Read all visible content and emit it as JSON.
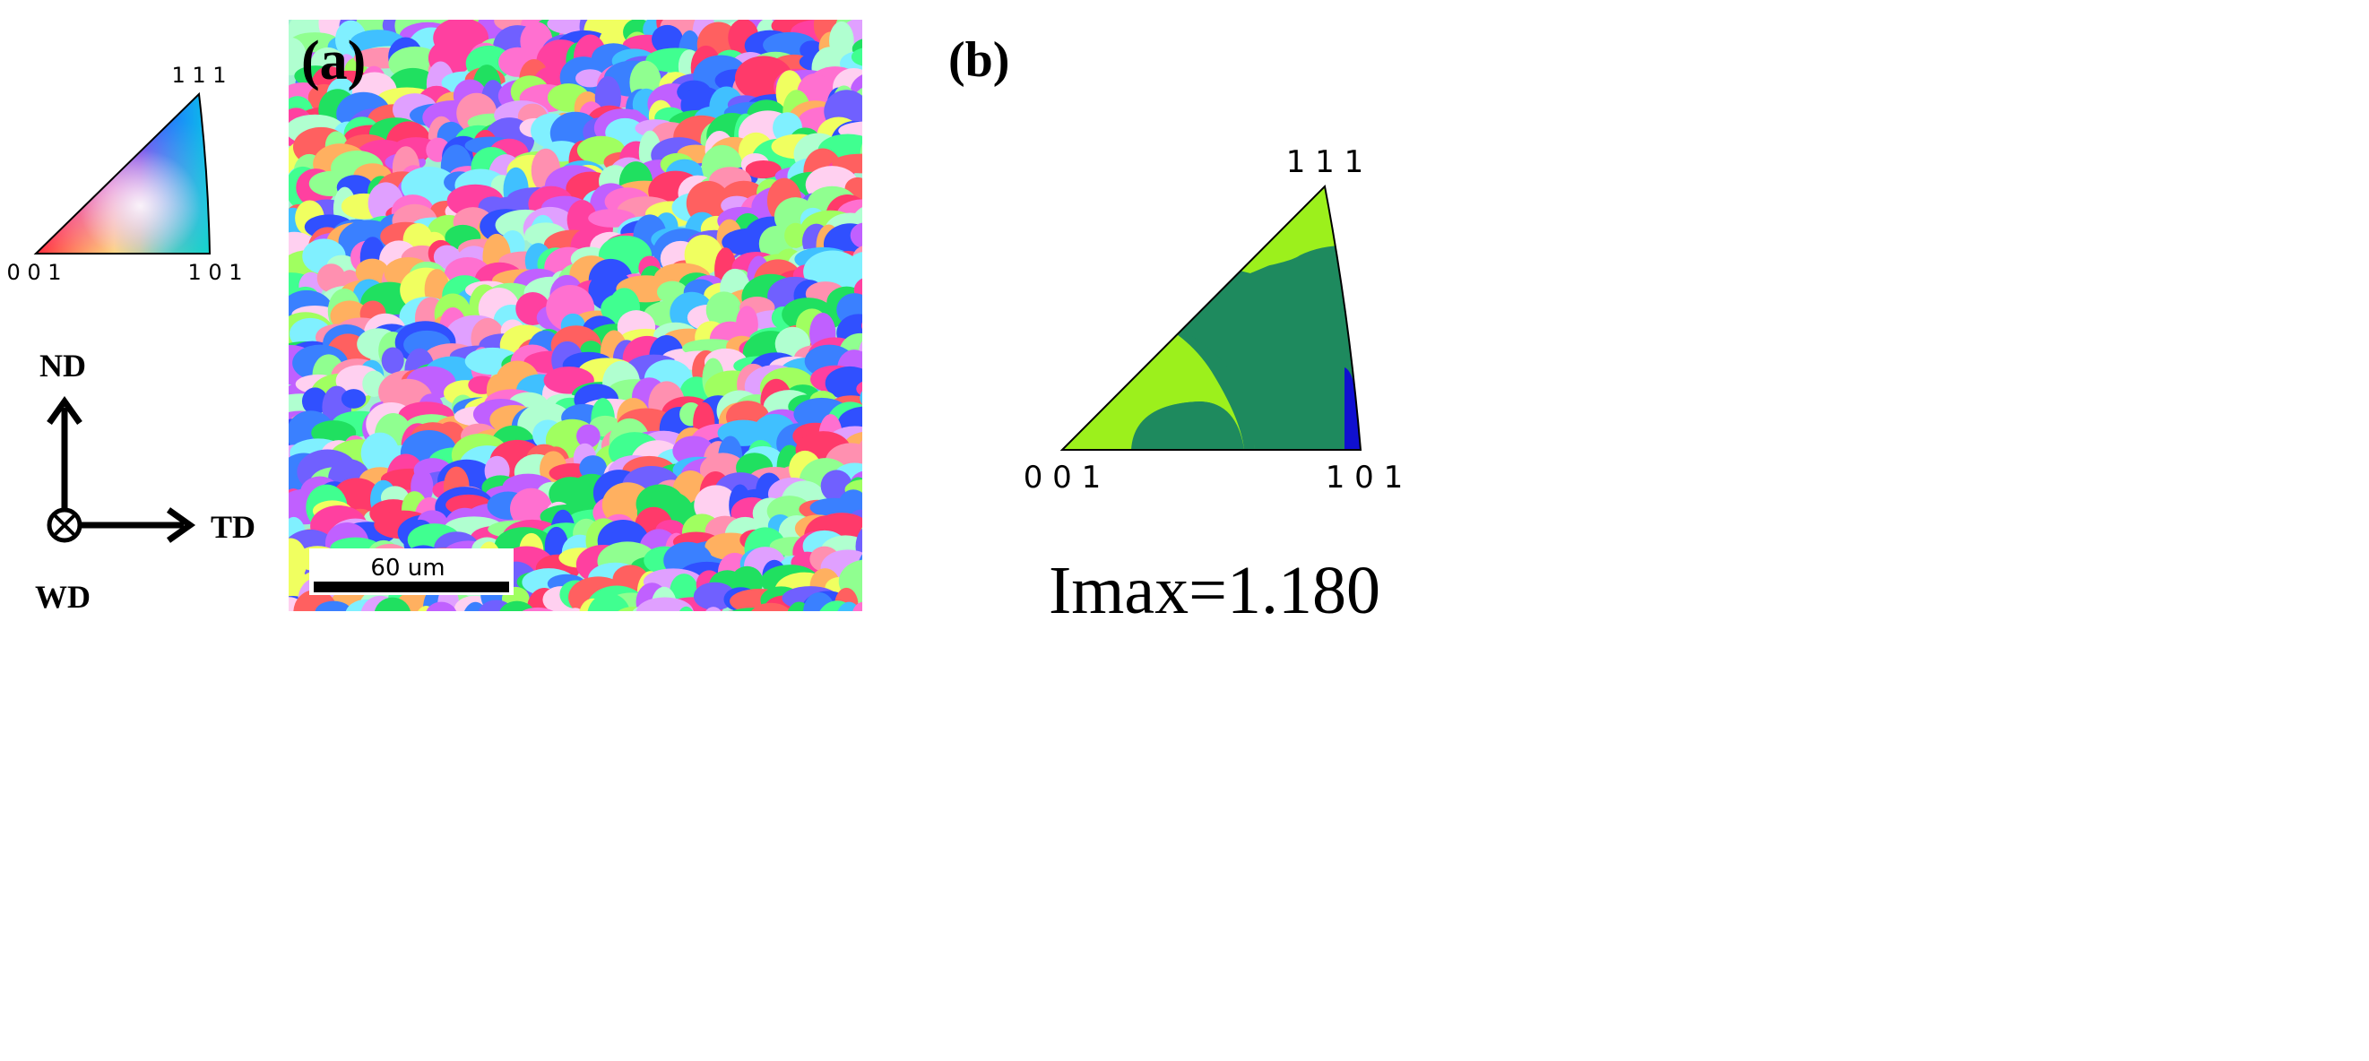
{
  "legend": {
    "corner_111": "1 1 1",
    "corner_001": "0 0 1",
    "corner_101": "1 0 1"
  },
  "axes": {
    "nd": "ND",
    "td": "TD",
    "wd": "WD"
  },
  "panel_a": {
    "label": "(a)",
    "scale_bar": "60 um"
  },
  "panel_b": {
    "label": "(b)",
    "corner_111": "1 1 1",
    "corner_001": "0 0 1",
    "corner_101": "1 0 1",
    "imax": "Imax=1.180"
  }
}
